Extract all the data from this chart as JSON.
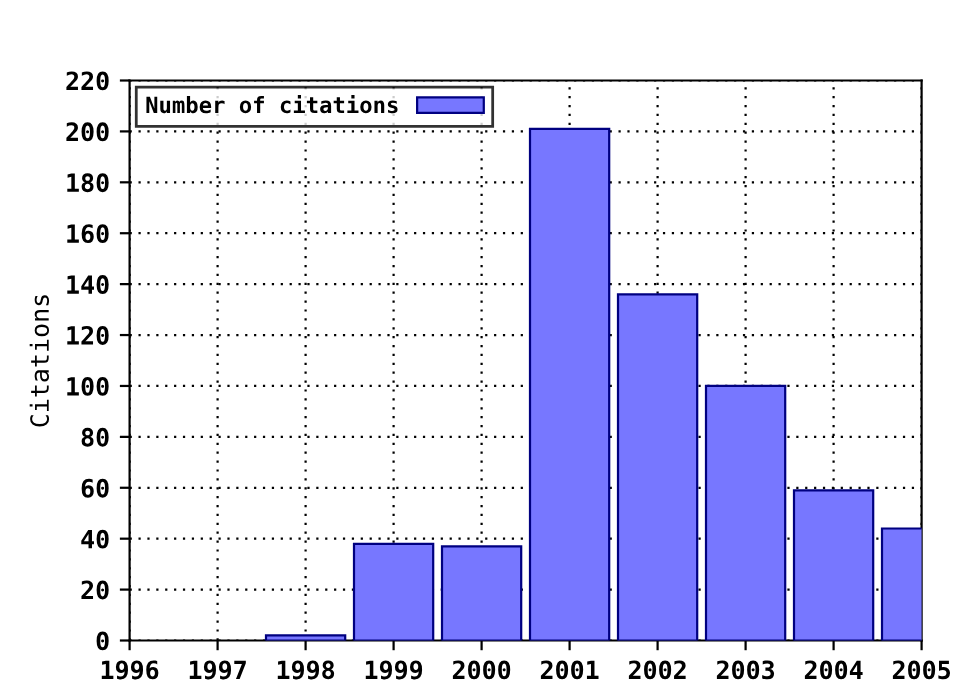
{
  "chart_data": {
    "type": "bar",
    "ylabel": "Citations",
    "x": [
      1998,
      1999,
      2000,
      2001,
      2002,
      2003,
      2004,
      2005
    ],
    "series": [
      {
        "name": "Number of citations",
        "color": "#7777ff",
        "values": [
          2,
          38,
          37,
          201,
          136,
          100,
          59,
          44
        ]
      }
    ],
    "xlim": [
      1996,
      2005
    ],
    "xticks": [
      1996,
      1997,
      1998,
      1999,
      2000,
      2001,
      2002,
      2003,
      2004,
      2005
    ],
    "ylim": [
      0,
      220
    ],
    "yticks": [
      0,
      20,
      40,
      60,
      80,
      100,
      120,
      140,
      160,
      180,
      200,
      220
    ],
    "grid": true,
    "legend": "top left"
  }
}
